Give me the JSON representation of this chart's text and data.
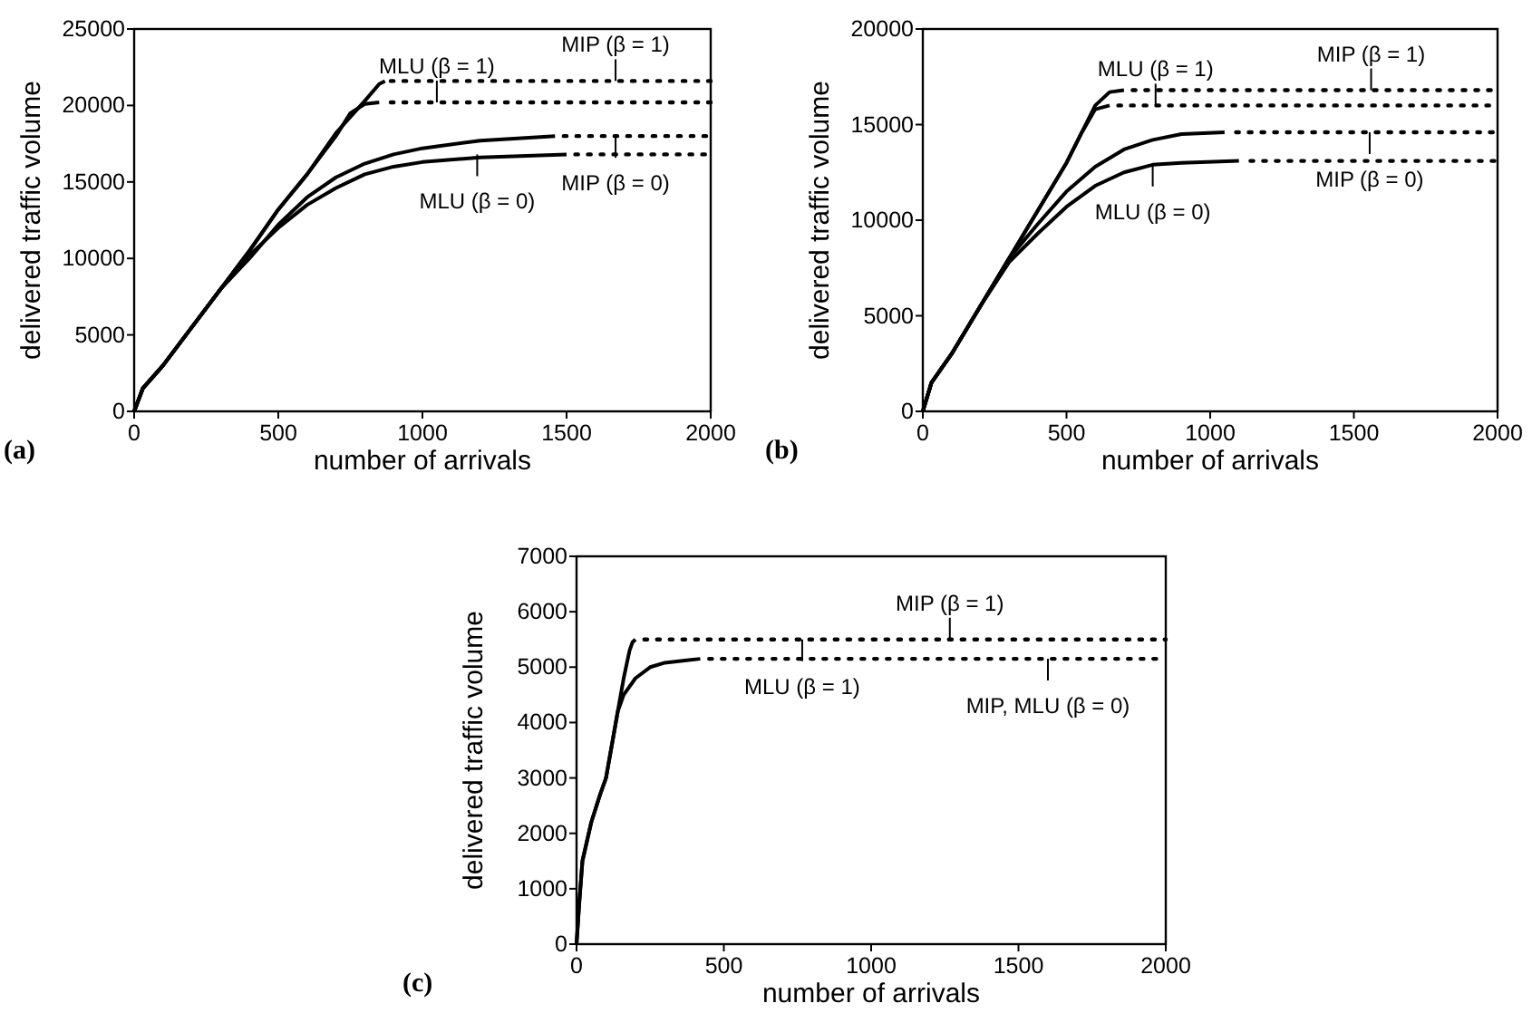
{
  "chart_data": [
    {
      "type": "line",
      "title": "(a)",
      "xlabel": "number of arrivals",
      "ylabel": "delivered traffic volume",
      "xlim": [
        0,
        2000
      ],
      "ylim": [
        0,
        25000
      ],
      "xticks": [
        0,
        500,
        1000,
        1500,
        2000
      ],
      "yticks": [
        0,
        5000,
        10000,
        15000,
        20000,
        25000
      ],
      "marker": "none",
      "series": [
        {
          "color": "#000000",
          "line_style": "solid",
          "x": [
            0,
            30,
            100,
            200,
            300,
            400,
            500,
            600,
            700,
            800,
            850,
            870
          ],
          "values": [
            0,
            1500,
            3000,
            5500,
            8000,
            10500,
            13200,
            15500,
            18200,
            20300,
            21400,
            21600
          ]
        },
        {
          "color": "#000000",
          "line_style": "solid",
          "x": [
            0,
            30,
            100,
            200,
            300,
            400,
            500,
            600,
            700,
            750,
            800,
            850
          ],
          "values": [
            0,
            1500,
            3000,
            5500,
            8000,
            10500,
            13200,
            15500,
            18000,
            19500,
            20100,
            20200
          ]
        },
        {
          "color": "#000000",
          "line_style": "solid",
          "x": [
            0,
            30,
            100,
            200,
            300,
            400,
            500,
            600,
            700,
            800,
            900,
            1000,
            1200,
            1460
          ],
          "values": [
            0,
            1500,
            3000,
            5500,
            8000,
            10000,
            12200,
            14000,
            15300,
            16200,
            16800,
            17200,
            17700,
            18000
          ]
        },
        {
          "color": "#000000",
          "line_style": "solid",
          "x": [
            0,
            30,
            100,
            200,
            300,
            400,
            500,
            600,
            700,
            800,
            900,
            1000,
            1200,
            1500
          ],
          "values": [
            0,
            1500,
            3000,
            5500,
            8000,
            10200,
            12000,
            13500,
            14600,
            15500,
            16000,
            16300,
            16600,
            16800
          ]
        },
        {
          "color": "#000000",
          "line_style": "dotted",
          "x": [
            890,
            2000
          ],
          "values": [
            21600,
            21600
          ]
        },
        {
          "color": "#000000",
          "line_style": "dotted",
          "x": [
            890,
            2000
          ],
          "values": [
            20200,
            20200
          ]
        },
        {
          "color": "#000000",
          "line_style": "dotted",
          "x": [
            1490,
            2000
          ],
          "values": [
            18000,
            18000
          ]
        },
        {
          "color": "#000000",
          "line_style": "dotted",
          "x": [
            1530,
            2000
          ],
          "values": [
            16800,
            16800
          ]
        }
      ],
      "annotations": [
        {
          "text": "MLU (β = 1)",
          "x": 1050,
          "y": 20200
        },
        {
          "text": "MIP (β = 1)",
          "x": 1670,
          "y": 21600
        },
        {
          "text": "MLU (β = 0)",
          "x": 1190,
          "y": 16800
        },
        {
          "text": "MIP (β = 0)",
          "x": 1670,
          "y": 18000
        }
      ]
    },
    {
      "type": "line",
      "title": "(b)",
      "xlabel": "number of arrivals",
      "ylabel": "delivered traffic volume",
      "xlim": [
        0,
        2000
      ],
      "ylim": [
        0,
        20000
      ],
      "xticks": [
        0,
        500,
        1000,
        1500,
        2000
      ],
      "yticks": [
        0,
        5000,
        10000,
        15000,
        20000
      ],
      "marker": "none",
      "series": [
        {
          "color": "#000000",
          "line_style": "solid",
          "x": [
            0,
            30,
            100,
            200,
            300,
            400,
            500,
            550,
            600,
            650,
            700
          ],
          "values": [
            0,
            1500,
            3000,
            5500,
            8000,
            10500,
            13000,
            14500,
            16000,
            16700,
            16800
          ]
        },
        {
          "color": "#000000",
          "line_style": "solid",
          "x": [
            0,
            30,
            100,
            200,
            300,
            400,
            500,
            550,
            600,
            650
          ],
          "values": [
            0,
            1500,
            3000,
            5500,
            8000,
            10500,
            13000,
            14500,
            15800,
            16000
          ]
        },
        {
          "color": "#000000",
          "line_style": "solid",
          "x": [
            0,
            30,
            100,
            200,
            300,
            400,
            500,
            600,
            700,
            800,
            900,
            1050
          ],
          "values": [
            0,
            1500,
            3000,
            5500,
            8000,
            9800,
            11500,
            12800,
            13700,
            14200,
            14500,
            14600
          ]
        },
        {
          "color": "#000000",
          "line_style": "solid",
          "x": [
            0,
            30,
            100,
            200,
            300,
            400,
            500,
            600,
            700,
            800,
            900,
            1100
          ],
          "values": [
            0,
            1500,
            3000,
            5500,
            7800,
            9300,
            10700,
            11800,
            12500,
            12900,
            13000,
            13100
          ]
        },
        {
          "color": "#000000",
          "line_style": "dotted",
          "x": [
            730,
            2000
          ],
          "values": [
            16800,
            16800
          ]
        },
        {
          "color": "#000000",
          "line_style": "dotted",
          "x": [
            680,
            2000
          ],
          "values": [
            16000,
            16000
          ]
        },
        {
          "color": "#000000",
          "line_style": "dotted",
          "x": [
            1090,
            2000
          ],
          "values": [
            14600,
            14600
          ]
        },
        {
          "color": "#000000",
          "line_style": "dotted",
          "x": [
            1140,
            2000
          ],
          "values": [
            13100,
            13100
          ]
        }
      ],
      "annotations": [
        {
          "text": "MLU (β = 1)",
          "x": 810,
          "y": 16000
        },
        {
          "text": "MIP (β = 1)",
          "x": 1560,
          "y": 16800
        },
        {
          "text": "MLU (β = 0)",
          "x": 800,
          "y": 12900
        },
        {
          "text": "MIP (β = 0)",
          "x": 1555,
          "y": 14600
        }
      ]
    },
    {
      "type": "line",
      "title": "(c)",
      "xlabel": "number of arrivals",
      "ylabel": "delivered traffic volume",
      "xlim": [
        0,
        2000
      ],
      "ylim": [
        0,
        7000
      ],
      "xticks": [
        0,
        500,
        1000,
        1500,
        2000
      ],
      "yticks": [
        0,
        1000,
        2000,
        3000,
        4000,
        5000,
        6000,
        7000
      ],
      "marker": "none",
      "series": [
        {
          "color": "#000000",
          "line_style": "solid",
          "x": [
            0,
            10,
            20,
            50,
            80,
            100,
            120,
            140,
            160,
            180,
            190,
            200
          ],
          "values": [
            0,
            800,
            1500,
            2200,
            2700,
            3000,
            3600,
            4200,
            4800,
            5300,
            5450,
            5500
          ]
        },
        {
          "color": "#000000",
          "line_style": "solid",
          "x": [
            0,
            10,
            20,
            50,
            80,
            100,
            120,
            140,
            160,
            200,
            250,
            300,
            420
          ],
          "values": [
            0,
            800,
            1500,
            2200,
            2700,
            3000,
            3600,
            4200,
            4500,
            4800,
            5000,
            5080,
            5150
          ]
        },
        {
          "color": "#000000",
          "line_style": "dotted",
          "x": [
            230,
            2000
          ],
          "values": [
            5500,
            5500
          ]
        },
        {
          "color": "#000000",
          "line_style": "dotted",
          "x": [
            450,
            2000
          ],
          "values": [
            5150,
            5150
          ]
        }
      ],
      "annotations": [
        {
          "text": "MIP (β = 1)",
          "x": 1267,
          "y": 5500
        },
        {
          "text": "MLU (β = 1)",
          "x": 766,
          "y": 5500
        },
        {
          "text": "MIP, MLU (β = 0)",
          "x": 1600,
          "y": 5150
        }
      ]
    }
  ]
}
